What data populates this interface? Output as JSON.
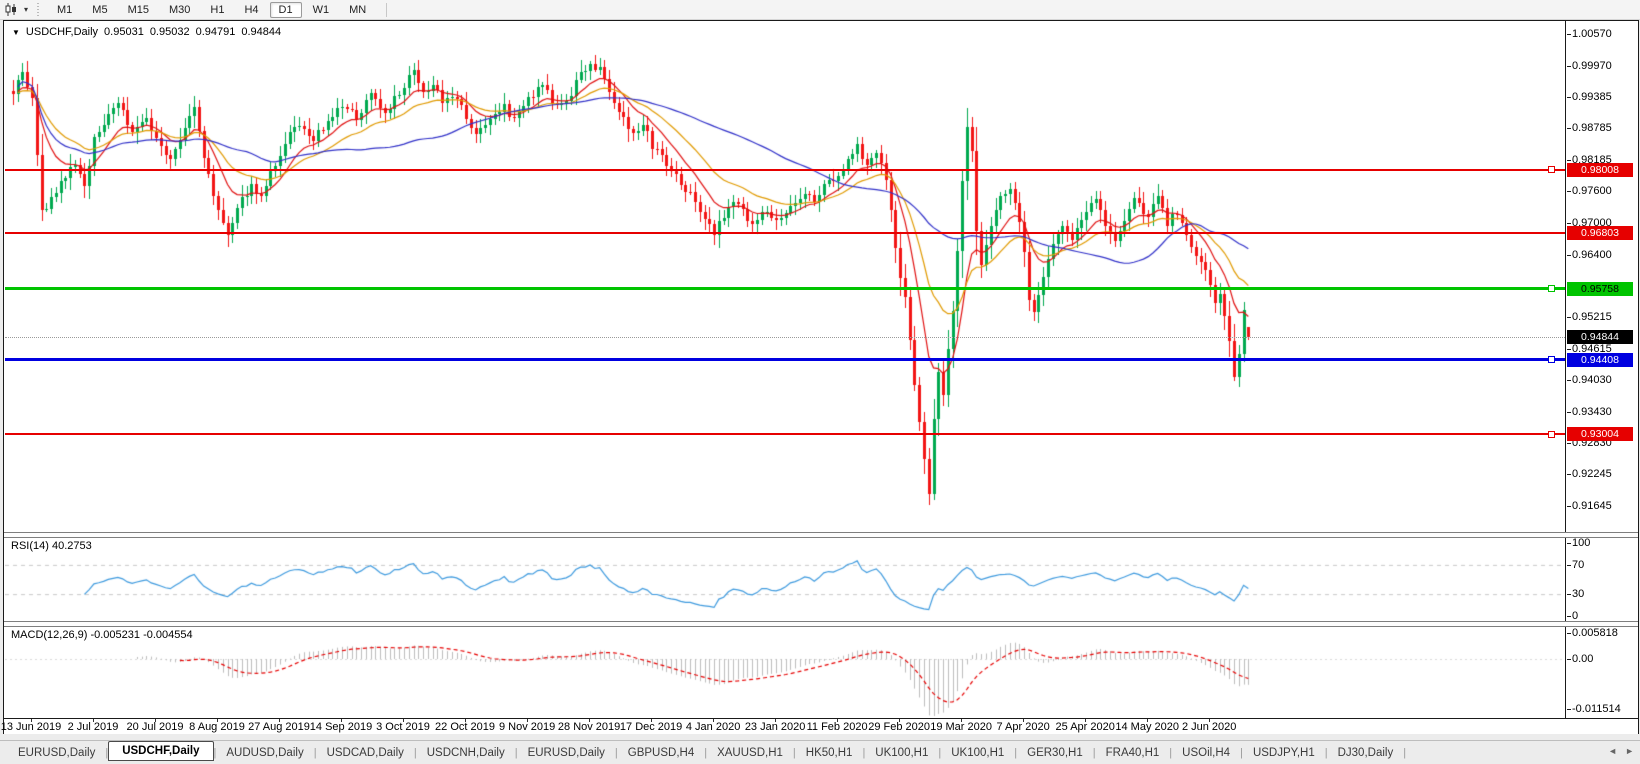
{
  "toolbar": {
    "dropdown_caret": "▾",
    "timeframes": [
      "M1",
      "M5",
      "M15",
      "M30",
      "H1",
      "H4",
      "D1",
      "W1",
      "MN"
    ],
    "selected_timeframe": "D1"
  },
  "chart_header": {
    "collapse_marker": "▼",
    "title": "USDCHF,Daily",
    "open": "0.95031",
    "high": "0.95032",
    "low": "0.94791",
    "close": "0.94844"
  },
  "price_axis": {
    "max": 1.0057,
    "min": 0.91645,
    "ticks": [
      "1.00570",
      "0.99970",
      "0.99385",
      "0.98785",
      "0.98185",
      "0.97600",
      "0.97000",
      "0.96400",
      "0.95215",
      "0.94615",
      "0.94030",
      "0.93430",
      "0.92830",
      "0.92245",
      "0.91645"
    ]
  },
  "levels": [
    {
      "label": "0.98008",
      "value": 0.98008,
      "color": "#e60000",
      "text_color": "#ffffff",
      "thickness": 2,
      "handle": true
    },
    {
      "label": "0.96803",
      "value": 0.96803,
      "color": "#e60000",
      "text_color": "#ffffff",
      "thickness": 2,
      "handle": false
    },
    {
      "label": "0.95758",
      "value": 0.95758,
      "color": "#00c400",
      "text_color": "#000000",
      "thickness": 3,
      "handle": true
    },
    {
      "label": "0.94408",
      "value": 0.94408,
      "color": "#0000e0",
      "text_color": "#ffffff",
      "thickness": 3,
      "handle": true
    },
    {
      "label": "0.93004",
      "value": 0.93004,
      "color": "#e60000",
      "text_color": "#ffffff",
      "thickness": 2,
      "handle": true
    }
  ],
  "current_price": {
    "label": "0.94844",
    "value": 0.94844,
    "tag_bg": "#000000",
    "tag_text": "#ffffff"
  },
  "rsi_panel": {
    "title": "RSI(14) 40.2753",
    "indicator": "RSI",
    "period": 14,
    "value": 40.2753,
    "axis_ticks": [
      {
        "label": "100",
        "value": 100
      },
      {
        "label": "70",
        "value": 70
      },
      {
        "label": "30",
        "value": 30
      },
      {
        "label": "0",
        "value": 0
      }
    ],
    "dashed_levels": [
      70,
      30
    ]
  },
  "macd_panel": {
    "title": "MACD(12,26,9) -0.005231 -0.004554",
    "main_value": -0.005231,
    "signal_value": -0.004554,
    "axis_ticks": [
      {
        "label": "0.005818",
        "value": 0.005818
      },
      {
        "label": "0.00",
        "value": 0
      },
      {
        "label": "-0.011514",
        "value": -0.011514
      }
    ]
  },
  "date_axis": [
    "13 Jun 2019",
    "2 Jul 2019",
    "20 Jul 2019",
    "8 Aug 2019",
    "27 Aug 2019",
    "14 Sep 2019",
    "3 Oct 2019",
    "22 Oct 2019",
    "9 Nov 2019",
    "28 Nov 2019",
    "17 Dec 2019",
    "4 Jan 2020",
    "23 Jan 2020",
    "11 Feb 2020",
    "29 Feb 2020",
    "19 Mar 2020",
    "7 Apr 2020",
    "25 Apr 2020",
    "14 May 2020",
    "2 Jun 2020"
  ],
  "tabs": {
    "items": [
      "EURUSD,Daily",
      "USDCHF,Daily",
      "AUDUSD,Daily",
      "USDCAD,Daily",
      "USDCNH,Daily",
      "EURUSD,Daily",
      "GBPUSD,H4",
      "XAUUSD,H1",
      "HK50,H1",
      "UK100,H1",
      "UK100,H1",
      "GER30,H1",
      "FRA40,H1",
      "USOil,H4",
      "USDJPY,H1",
      "DJ30,Daily"
    ],
    "active_index": 1,
    "nav_prev": "◄",
    "nav_next": "►"
  },
  "colors": {
    "bull": "#00a94f",
    "bear": "#f21515",
    "ma_fast": "#e01010",
    "ma_mid": "#e09a00",
    "ma_slow": "#3030c8",
    "rsi_line": "#3e9ade",
    "rsi_dashed": "#c8c8c8",
    "macd_hist": "#bcbcbc",
    "macd_signal": "#e60000"
  },
  "chart_data": {
    "type": "candlestick",
    "symbol": "USDCHF",
    "timeframe": "Daily",
    "n_days": 260,
    "visible_price_range": [
      0.91645,
      1.0057
    ],
    "first_label_day": 4,
    "date_label_step_days": 13,
    "close_anchors": [
      [
        0,
        0.995
      ],
      [
        2,
        0.9985
      ],
      [
        4,
        0.9935
      ],
      [
        6,
        0.9718
      ],
      [
        8,
        0.9745
      ],
      [
        10,
        0.9775
      ],
      [
        13,
        0.981
      ],
      [
        15,
        0.977
      ],
      [
        17,
        0.9855
      ],
      [
        20,
        0.9905
      ],
      [
        22,
        0.9925
      ],
      [
        25,
        0.987
      ],
      [
        28,
        0.99
      ],
      [
        30,
        0.9855
      ],
      [
        33,
        0.982
      ],
      [
        36,
        0.988
      ],
      [
        38,
        0.992
      ],
      [
        40,
        0.982
      ],
      [
        43,
        0.972
      ],
      [
        45,
        0.968
      ],
      [
        47,
        0.973
      ],
      [
        50,
        0.977
      ],
      [
        52,
        0.9745
      ],
      [
        54,
        0.98
      ],
      [
        56,
        0.9825
      ],
      [
        58,
        0.987
      ],
      [
        60,
        0.989
      ],
      [
        63,
        0.9855
      ],
      [
        66,
        0.9895
      ],
      [
        69,
        0.9925
      ],
      [
        72,
        0.99
      ],
      [
        75,
        0.994
      ],
      [
        78,
        0.9905
      ],
      [
        80,
        0.9935
      ],
      [
        82,
        0.996
      ],
      [
        84,
        0.9985
      ],
      [
        86,
        0.9945
      ],
      [
        88,
        0.9965
      ],
      [
        90,
        0.9925
      ],
      [
        93,
        0.994
      ],
      [
        95,
        0.99
      ],
      [
        97,
        0.9865
      ],
      [
        100,
        0.989
      ],
      [
        103,
        0.992
      ],
      [
        105,
        0.9895
      ],
      [
        108,
        0.9935
      ],
      [
        111,
        0.996
      ],
      [
        114,
        0.992
      ],
      [
        117,
        0.9945
      ],
      [
        119,
        0.9985
      ],
      [
        121,
        1.0
      ],
      [
        123,
        0.999
      ],
      [
        125,
        0.995
      ],
      [
        127,
        0.9905
      ],
      [
        130,
        0.987
      ],
      [
        132,
        0.989
      ],
      [
        134,
        0.9845
      ],
      [
        137,
        0.981
      ],
      [
        140,
        0.9775
      ],
      [
        143,
        0.9745
      ],
      [
        145,
        0.9705
      ],
      [
        147,
        0.968
      ],
      [
        149,
        0.9715
      ],
      [
        151,
        0.9745
      ],
      [
        153,
        0.972
      ],
      [
        155,
        0.969
      ],
      [
        157,
        0.972
      ],
      [
        160,
        0.97
      ],
      [
        163,
        0.9735
      ],
      [
        166,
        0.976
      ],
      [
        168,
        0.974
      ],
      [
        170,
        0.9775
      ],
      [
        173,
        0.979
      ],
      [
        175,
        0.982
      ],
      [
        177,
        0.9845
      ],
      [
        179,
        0.981
      ],
      [
        181,
        0.9835
      ],
      [
        183,
        0.978
      ],
      [
        184,
        0.9725
      ],
      [
        185,
        0.965
      ],
      [
        186,
        0.959
      ],
      [
        187,
        0.956
      ],
      [
        188,
        0.948
      ],
      [
        189,
        0.939
      ],
      [
        190,
        0.933
      ],
      [
        191,
        0.925
      ],
      [
        192,
        0.919
      ],
      [
        193,
        0.933
      ],
      [
        194,
        0.942
      ],
      [
        195,
        0.938
      ],
      [
        196,
        0.946
      ],
      [
        197,
        0.953
      ],
      [
        198,
        0.965
      ],
      [
        199,
        0.978
      ],
      [
        200,
        0.988
      ],
      [
        201,
        0.984
      ],
      [
        202,
        0.968
      ],
      [
        203,
        0.962
      ],
      [
        205,
        0.97
      ],
      [
        207,
        0.9745
      ],
      [
        209,
        0.977
      ],
      [
        211,
        0.97
      ],
      [
        212,
        0.964
      ],
      [
        213,
        0.956
      ],
      [
        214,
        0.9525
      ],
      [
        216,
        0.96
      ],
      [
        218,
        0.966
      ],
      [
        220,
        0.97
      ],
      [
        222,
        0.967
      ],
      [
        225,
        0.972
      ],
      [
        227,
        0.9745
      ],
      [
        229,
        0.97
      ],
      [
        231,
        0.966
      ],
      [
        233,
        0.971
      ],
      [
        235,
        0.974
      ],
      [
        238,
        0.9715
      ],
      [
        240,
        0.9745
      ],
      [
        242,
        0.97
      ],
      [
        244,
        0.972
      ],
      [
        246,
        0.968
      ],
      [
        248,
        0.964
      ],
      [
        250,
        0.961
      ],
      [
        251,
        0.958
      ],
      [
        252,
        0.9545
      ],
      [
        253,
        0.957
      ],
      [
        254,
        0.952
      ],
      [
        255,
        0.947
      ],
      [
        256,
        0.9405
      ],
      [
        257,
        0.9455
      ],
      [
        258,
        0.953
      ],
      [
        259,
        0.94844
      ]
    ],
    "spike_low": {
      "day": 192,
      "price": 0.9167
    },
    "spike_high": {
      "day": 200,
      "price": 0.9902
    },
    "last_ohlc": {
      "open": 0.95031,
      "high": 0.95032,
      "low": 0.94791,
      "close": 0.94844
    },
    "overlays": [
      {
        "name": "ma-fast",
        "type": "ema",
        "period": 10,
        "color_key": "ma_fast"
      },
      {
        "name": "ma-mid",
        "type": "ema",
        "period": 22,
        "color_key": "ma_mid"
      },
      {
        "name": "ma-slow",
        "type": "sma",
        "period": 50,
        "color_key": "ma_slow"
      }
    ],
    "indicators": [
      {
        "name": "RSI",
        "period": 14,
        "last": 40.2753
      },
      {
        "name": "MACD",
        "fast": 12,
        "slow": 26,
        "signal": 9,
        "last_main": -0.005231,
        "last_signal": -0.004554
      }
    ],
    "horizontal_lines": [
      0.98008,
      0.96803,
      0.95758,
      0.94408,
      0.93004
    ]
  }
}
